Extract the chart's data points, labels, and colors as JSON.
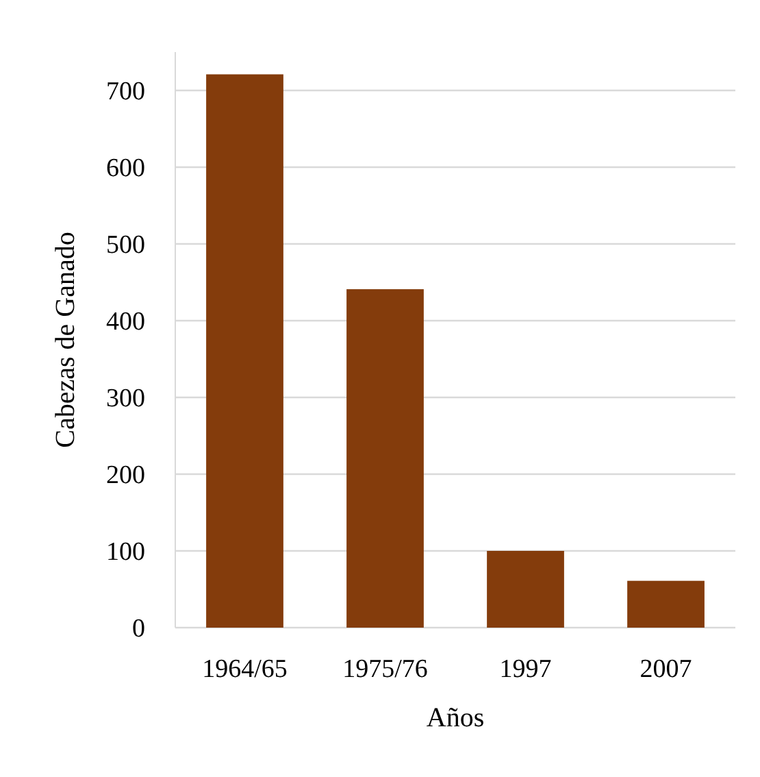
{
  "chart_data": {
    "type": "bar",
    "xlabel": "Años",
    "ylabel": "Cabezas de Ganado",
    "categories": [
      "1964/65",
      "1975/76",
      "1997",
      "2007"
    ],
    "values": [
      721,
      441,
      100,
      61
    ],
    "color": "#843c0c",
    "ylim": [
      0,
      750
    ],
    "yticks": [
      0,
      100,
      200,
      300,
      400,
      500,
      600,
      700
    ],
    "grid": "y"
  }
}
